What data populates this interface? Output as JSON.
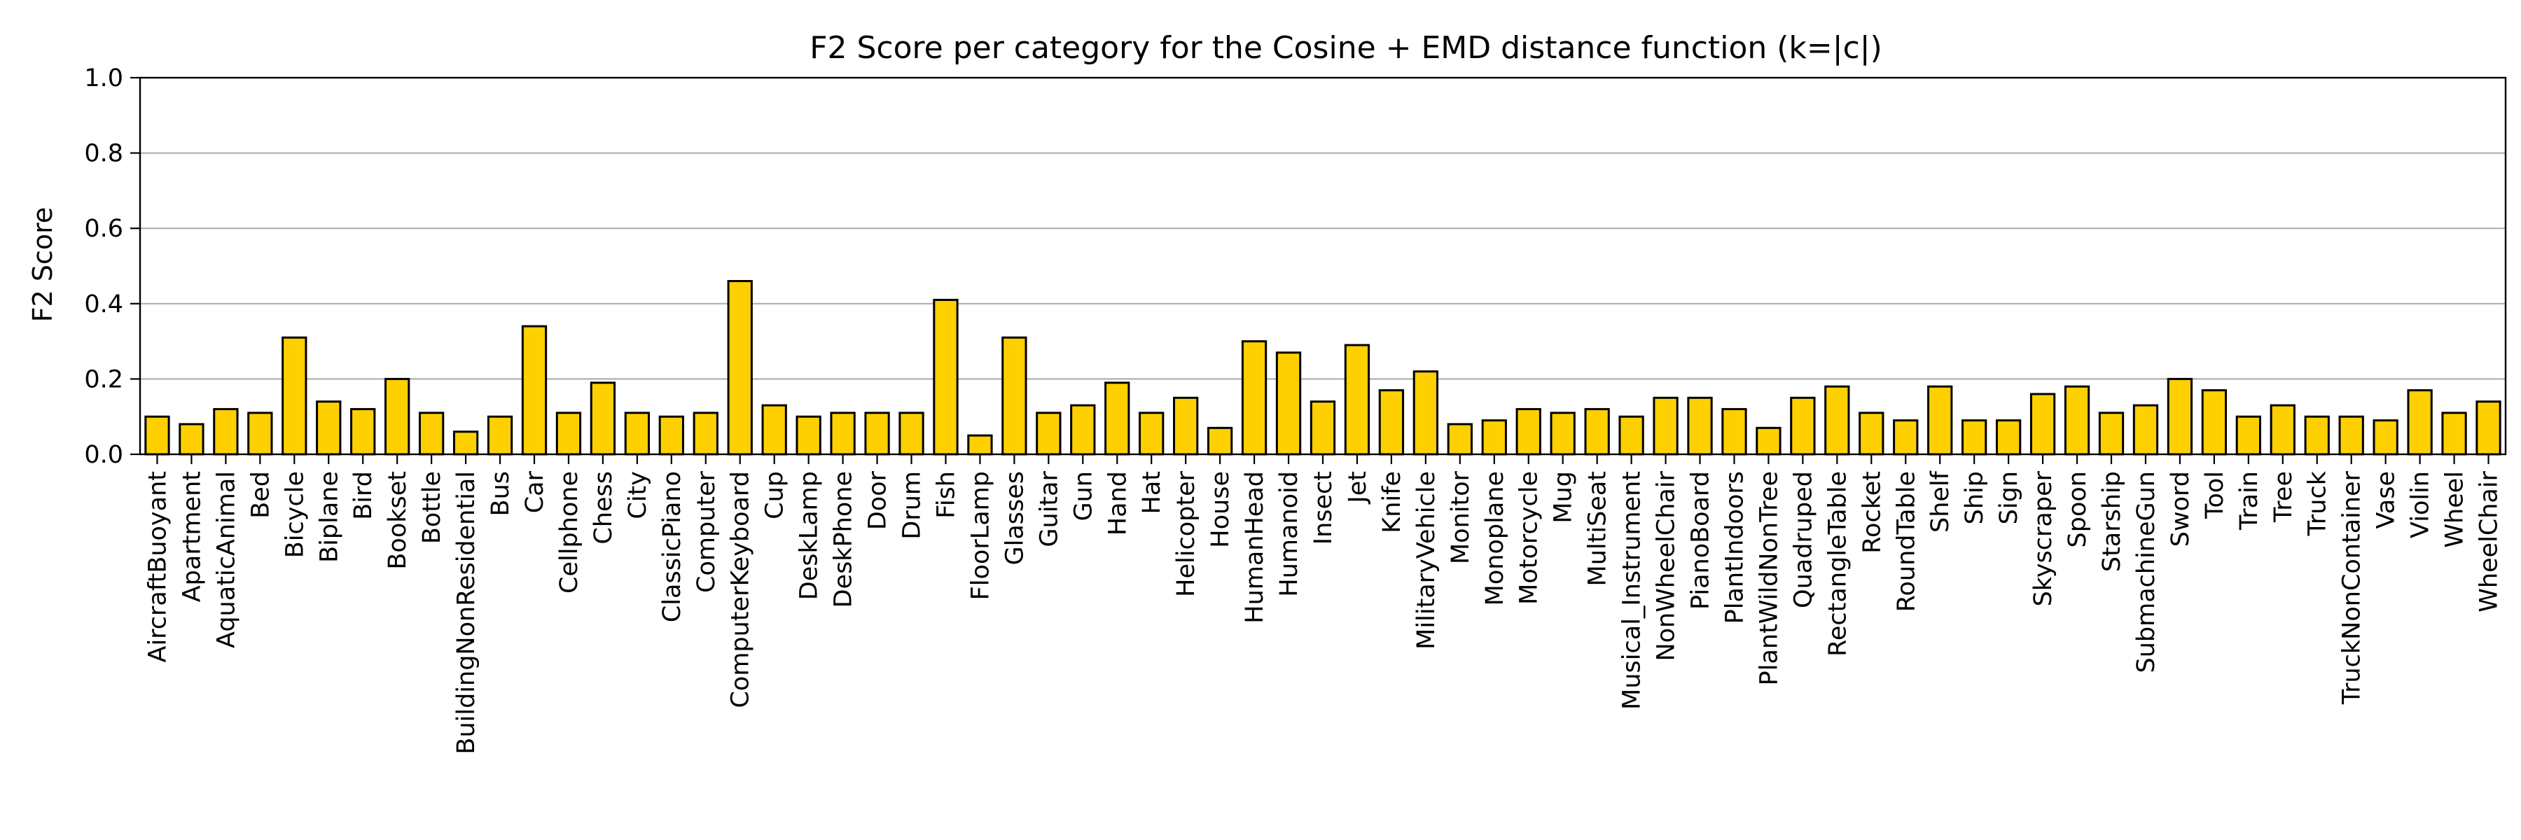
{
  "chart_data": {
    "type": "bar",
    "title": "F2 Score per category for the Cosine + EMD distance function (k=|c|)",
    "xlabel": "",
    "ylabel": "F2 Score",
    "ylim": [
      0,
      1.0
    ],
    "yticks": [
      0.0,
      0.2,
      0.4,
      0.6,
      0.8,
      1.0
    ],
    "ytick_labels": [
      "0.0",
      "0.2",
      "0.4",
      "0.6",
      "0.8",
      "1.0"
    ],
    "grid": "horizontal",
    "bar_color": "#ffd000",
    "edge_color": "#000000",
    "categories": [
      "AircraftBuoyant",
      "Apartment",
      "AquaticAnimal",
      "Bed",
      "Bicycle",
      "Biplane",
      "Bird",
      "Bookset",
      "Bottle",
      "BuildingNonResidential",
      "Bus",
      "Car",
      "Cellphone",
      "Chess",
      "City",
      "ClassicPiano",
      "Computer",
      "ComputerKeyboard",
      "Cup",
      "DeskLamp",
      "DeskPhone",
      "Door",
      "Drum",
      "Fish",
      "FloorLamp",
      "Glasses",
      "Guitar",
      "Gun",
      "Hand",
      "Hat",
      "Helicopter",
      "House",
      "HumanHead",
      "Humanoid",
      "Insect",
      "Jet",
      "Knife",
      "MilitaryVehicle",
      "Monitor",
      "Monoplane",
      "Motorcycle",
      "Mug",
      "MultiSeat",
      "Musical_Instrument",
      "NonWheelChair",
      "PianoBoard",
      "PlantIndoors",
      "PlantWildNonTree",
      "Quadruped",
      "RectangleTable",
      "Rocket",
      "RoundTable",
      "Shelf",
      "Ship",
      "Sign",
      "Skyscraper",
      "Spoon",
      "Starship",
      "SubmachineGun",
      "Sword",
      "Tool",
      "Train",
      "Tree",
      "Truck",
      "TruckNonContainer",
      "Vase",
      "Violin",
      "Wheel",
      "WheelChair"
    ],
    "values": [
      0.1,
      0.08,
      0.12,
      0.11,
      0.31,
      0.14,
      0.12,
      0.2,
      0.11,
      0.06,
      0.1,
      0.34,
      0.11,
      0.19,
      0.11,
      0.1,
      0.11,
      0.46,
      0.13,
      0.1,
      0.11,
      0.11,
      0.11,
      0.41,
      0.05,
      0.31,
      0.11,
      0.13,
      0.19,
      0.11,
      0.15,
      0.07,
      0.3,
      0.27,
      0.14,
      0.29,
      0.17,
      0.22,
      0.08,
      0.09,
      0.12,
      0.11,
      0.12,
      0.1,
      0.15,
      0.15,
      0.12,
      0.07,
      0.15,
      0.18,
      0.11,
      0.09,
      0.18,
      0.09,
      0.09,
      0.16,
      0.18,
      0.11,
      0.13,
      0.2,
      0.17,
      0.1,
      0.13,
      0.1,
      0.1,
      0.09,
      0.17,
      0.11,
      0.14
    ]
  }
}
